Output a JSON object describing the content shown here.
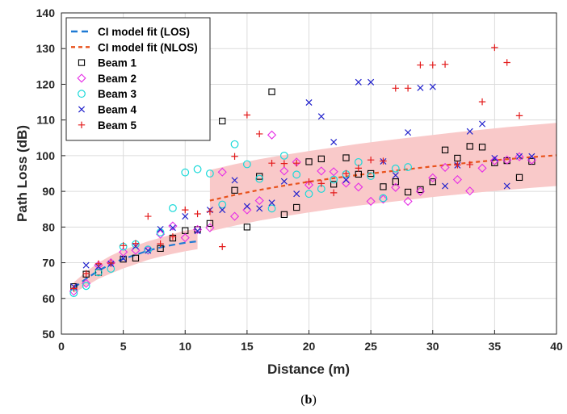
{
  "caption": {
    "open": "(",
    "letter": "b",
    "close": ")"
  },
  "chart_data": {
    "type": "scatter",
    "xlabel": "Distance (m)",
    "ylabel": "Path Loss (dB)",
    "xlim": [
      0,
      40
    ],
    "ylim": [
      50,
      140
    ],
    "xticks": [
      0,
      5,
      10,
      15,
      20,
      25,
      30,
      35,
      40
    ],
    "yticks": [
      50,
      60,
      70,
      80,
      90,
      100,
      110,
      120,
      130,
      140
    ],
    "grid": true,
    "legend_position": "top-left",
    "band": {
      "color": "#f9c9c9",
      "segments": [
        {
          "x": [
            1,
            2,
            3,
            4,
            5,
            6,
            7,
            8,
            9,
            10,
            11
          ],
          "upper": [
            64.5,
            67.5,
            70,
            72,
            73.6,
            74.8,
            76,
            77,
            78,
            79,
            79.5
          ],
          "lower": [
            61.5,
            63.5,
            65.5,
            67,
            68.4,
            69.6,
            70.8,
            71.7,
            72.5,
            73.2,
            73.8
          ]
        },
        {
          "x": [
            12,
            14,
            16,
            18,
            20,
            22,
            24,
            26,
            28,
            30,
            32,
            34,
            36,
            38,
            40
          ],
          "upper": [
            96,
            97.6,
            99,
            100.2,
            101.3,
            102.3,
            103.3,
            104.2,
            105,
            105.8,
            106.6,
            107.3,
            108,
            108.6,
            109.2
          ],
          "lower": [
            78.8,
            80.4,
            81.8,
            83,
            84.1,
            85.1,
            86,
            86.8,
            87.6,
            88.4,
            89.1,
            89.8,
            90.4,
            91,
            91.5
          ]
        }
      ]
    },
    "series": [
      {
        "name": "CI model fit (LOS)",
        "kind": "line",
        "color": "#1f7ad4",
        "dash": "8 5",
        "x": [
          1,
          2,
          3,
          4,
          5,
          6,
          7,
          8,
          9,
          10,
          11
        ],
        "y": [
          63,
          65.5,
          67.8,
          69.6,
          71.1,
          72.2,
          73.4,
          74.3,
          75,
          75.6,
          76
        ]
      },
      {
        "name": "CI model fit (NLOS)",
        "kind": "line",
        "color": "#e8521c",
        "dash": "5 4",
        "x": [
          12,
          14,
          16,
          18,
          20,
          22,
          24,
          26,
          28,
          30,
          32,
          34,
          36,
          38,
          40
        ],
        "y": [
          87.4,
          89,
          90.4,
          91.6,
          92.7,
          93.7,
          94.6,
          95.4,
          96.2,
          97,
          97.7,
          98.4,
          99,
          99.6,
          100.1
        ]
      },
      {
        "name": "Beam 1",
        "kind": "marker",
        "marker": "square",
        "color": "#000000",
        "x": [
          1,
          2,
          3,
          5,
          6,
          8,
          9,
          10,
          11,
          12,
          13,
          14,
          15,
          16,
          17,
          18,
          19,
          20,
          21,
          22,
          23,
          24,
          25,
          26,
          27,
          28,
          29,
          30,
          31,
          32,
          33,
          34,
          35,
          36,
          37,
          38
        ],
        "y": [
          63.3,
          66.8,
          67.3,
          71,
          71.3,
          74,
          76.9,
          79,
          79.3,
          81,
          109.7,
          90.3,
          80,
          94.2,
          117.9,
          83.5,
          85.5,
          98.3,
          99.1,
          92,
          99.4,
          94.8,
          95,
          91.3,
          92.7,
          89.8,
          90.5,
          92.7,
          101.6,
          99.3,
          102.6,
          102.4,
          98,
          98.6,
          93.9,
          98.4
        ]
      },
      {
        "name": "Beam 2",
        "kind": "marker",
        "marker": "diamond",
        "color": "#e62ce6",
        "x": [
          1,
          2,
          3,
          4,
          5,
          6,
          7,
          8,
          9,
          10,
          11,
          12,
          13,
          14,
          15,
          16,
          17,
          18,
          19,
          20,
          21,
          22,
          23,
          24,
          25,
          26,
          27,
          28,
          29,
          30,
          31,
          32,
          33,
          34,
          35,
          36,
          37,
          38
        ],
        "y": [
          62,
          64.2,
          69.3,
          70,
          73,
          73.5,
          73.5,
          78,
          80.3,
          77,
          79.3,
          79.8,
          95.4,
          83,
          84.8,
          87.4,
          105.8,
          95.7,
          98.2,
          91.8,
          95.7,
          95.5,
          92.3,
          91.2,
          87.2,
          87.8,
          91.1,
          87.2,
          90,
          93.8,
          96.7,
          93.3,
          90.1,
          96.5,
          98.6,
          98.8,
          99.7,
          98.8
        ]
      },
      {
        "name": "Beam 3",
        "kind": "marker",
        "marker": "circle",
        "color": "#1ad9d9",
        "x": [
          1,
          2,
          3,
          4,
          5,
          6,
          7,
          8,
          9,
          10,
          11,
          12,
          13,
          14,
          15,
          16,
          17,
          18,
          19,
          20,
          21,
          22,
          23,
          24,
          25,
          26,
          27,
          28
        ],
        "y": [
          61.5,
          63.5,
          67.3,
          68.3,
          74.5,
          75.2,
          73.7,
          78.5,
          85.3,
          95.3,
          96.2,
          95,
          86.3,
          103.2,
          97.6,
          93.5,
          85.2,
          100,
          94.7,
          89.3,
          90.7,
          93.3,
          94.8,
          98.2,
          94.3,
          88.1,
          96.4,
          96.8
        ]
      },
      {
        "name": "Beam 4",
        "kind": "marker",
        "marker": "x",
        "color": "#2222cc",
        "x": [
          1,
          2,
          3,
          4,
          5,
          6,
          7,
          8,
          9,
          10,
          11,
          12,
          13,
          14,
          15,
          16,
          17,
          18,
          19,
          20,
          21,
          22,
          23,
          24,
          25,
          26,
          27,
          28,
          29,
          30,
          31,
          32,
          33,
          34,
          35,
          36,
          37,
          38
        ],
        "y": [
          63.3,
          69.3,
          68.9,
          69.7,
          71.2,
          74.6,
          73.4,
          79.4,
          79.8,
          83,
          78.9,
          84.8,
          84.8,
          93.1,
          85.8,
          85.2,
          86.8,
          92.8,
          89.3,
          114.9,
          111,
          103.8,
          93.2,
          120.6,
          120.6,
          98.4,
          94.5,
          106.5,
          119,
          119.3,
          91.5,
          97.3,
          106.8,
          108.9,
          99.3,
          91.5,
          99.8,
          99.8
        ]
      },
      {
        "name": "Beam 5",
        "kind": "marker",
        "marker": "plus",
        "color": "#e31a1a",
        "x": [
          1,
          2,
          3,
          4,
          5,
          6,
          7,
          8,
          9,
          10,
          11,
          12,
          13,
          14,
          15,
          16,
          17,
          18,
          19,
          20,
          21,
          22,
          23,
          24,
          25,
          26,
          27,
          28,
          29,
          30,
          31,
          32,
          33,
          34,
          35,
          36,
          37
        ],
        "y": [
          62.8,
          67,
          69.7,
          69.9,
          74.8,
          75.4,
          83,
          75.3,
          77.3,
          84.8,
          83.7,
          84.3,
          74.5,
          99.8,
          111.4,
          106.1,
          97.9,
          97.8,
          97.9,
          92.7,
          92.2,
          89.6,
          95,
          96.5,
          98.8,
          98.5,
          118.9,
          118.9,
          125.4,
          125.4,
          125.6,
          97.4,
          97.5,
          115.1,
          130.3,
          126.1,
          111.2
        ]
      }
    ]
  }
}
